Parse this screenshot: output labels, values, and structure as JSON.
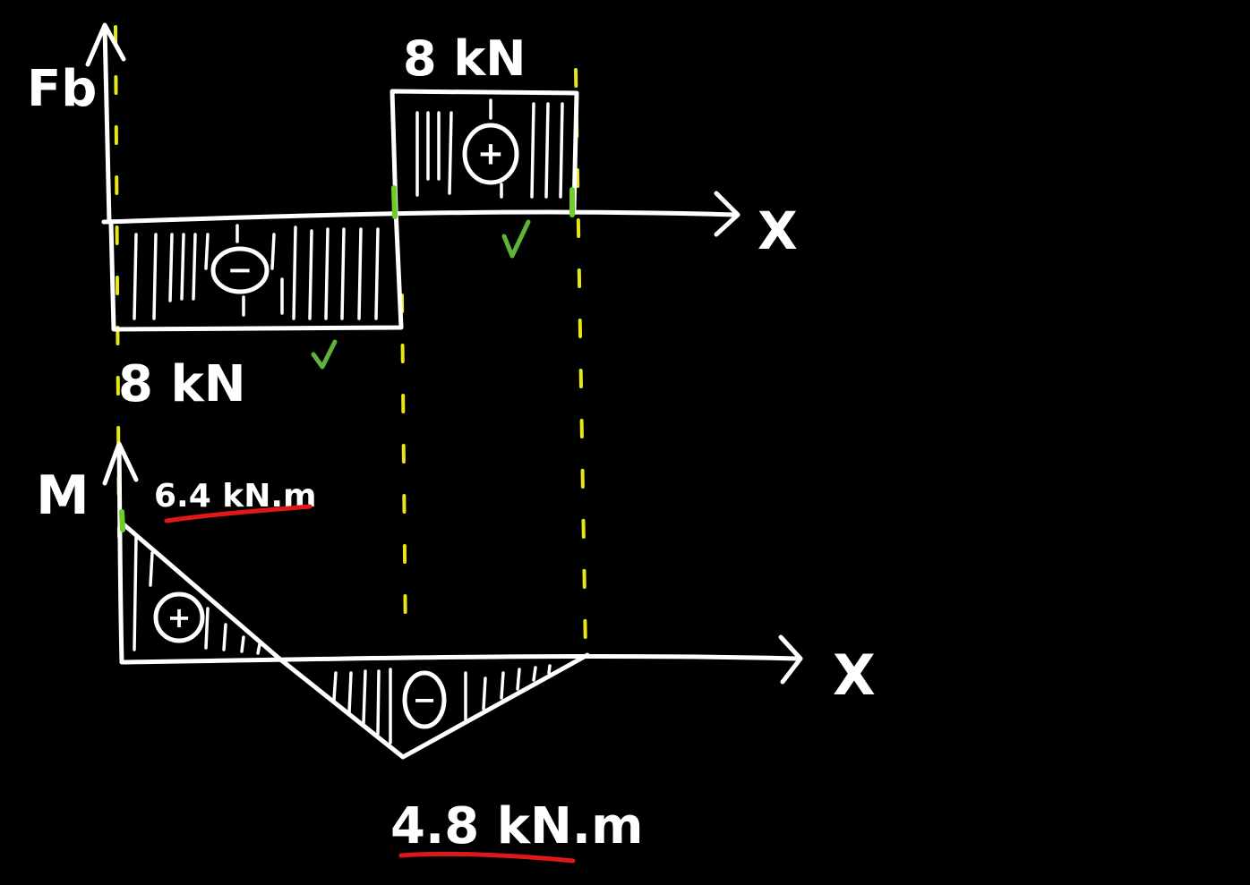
{
  "shear_diagram": {
    "axis_label": "Fb",
    "x_axis_label": "X",
    "segments": [
      {
        "sign": "−",
        "label": "8 kN"
      },
      {
        "sign": "+",
        "label": "8 kN"
      }
    ]
  },
  "moment_diagram": {
    "axis_label": "M",
    "x_axis_label": "X",
    "segments": [
      {
        "sign": "+",
        "label": "6.4 kN.m"
      },
      {
        "sign": "−",
        "label": "4.8 kN.m"
      }
    ]
  },
  "colors": {
    "background": "#000000",
    "ink": "#ffffff",
    "guide": "#e6e619",
    "check": "#5fb33a",
    "underline": "#e01818"
  }
}
